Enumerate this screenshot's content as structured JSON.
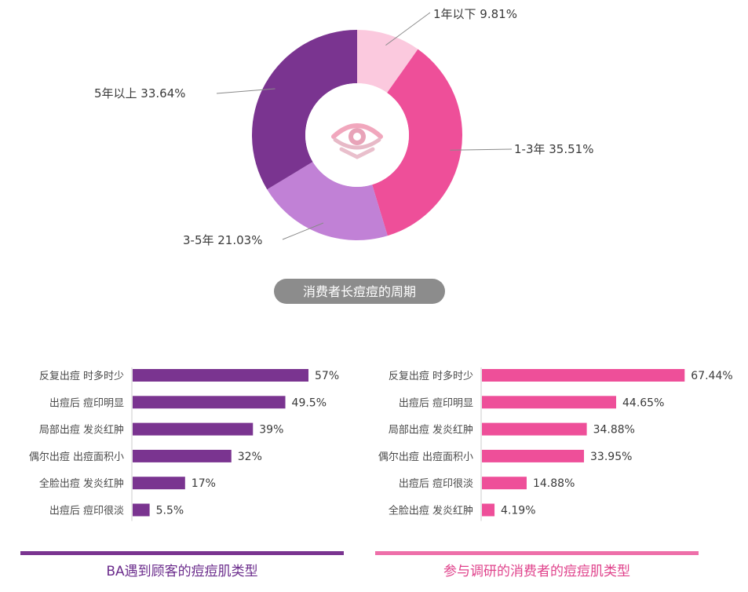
{
  "chart_data": [
    {
      "type": "pie",
      "donut": true,
      "title": "消费者长痘痘的周期",
      "slices": [
        {
          "label": "1年以下",
          "value": 9.81,
          "display": "1年以下 9.81%",
          "color": "#fbc9de"
        },
        {
          "label": "1-3年",
          "value": 35.51,
          "display": "1-3年 35.51%",
          "color": "#ee4f99"
        },
        {
          "label": "3-5年",
          "value": 21.03,
          "display": "3-5年 21.03%",
          "color": "#c181d6"
        },
        {
          "label": "5年以上",
          "value": 33.64,
          "display": "5年以上 33.64%",
          "color": "#7a3490"
        }
      ],
      "center_icon": "eye-icon"
    },
    {
      "type": "bar",
      "orientation": "horizontal",
      "title": "BA遇到顾客的痘痘肌类型",
      "color": "#7a3490",
      "xlim": [
        0,
        100
      ],
      "categories": [
        "反复出痘 时多时少",
        "出痘后 痘印明显",
        "局部出痘 发炎红肿",
        "偶尔出痘 出痘面积小",
        "全脸出痘 发炎红肿",
        "出痘后 痘印很淡"
      ],
      "values": [
        57,
        49.5,
        39,
        32,
        17,
        5.5
      ],
      "labels": [
        "57%",
        "49.5%",
        "39%",
        "32%",
        "17%",
        "5.5%"
      ]
    },
    {
      "type": "bar",
      "orientation": "horizontal",
      "title": "参与调研的消费者的痘痘肌类型",
      "color": "#ee4f99",
      "xlim": [
        0,
        100
      ],
      "categories": [
        "反复出痘 时多时少",
        "出痘后 痘印明显",
        "局部出痘 发炎红肿",
        "偶尔出痘 出痘面积小",
        "出痘后 痘印很淡",
        "全脸出痘 发炎红肿"
      ],
      "values": [
        67.44,
        44.65,
        34.88,
        33.95,
        14.88,
        4.19
      ],
      "labels": [
        "67.44%",
        "44.65%",
        "34.88%",
        "33.95%",
        "14.88%",
        "4.19%"
      ]
    }
  ]
}
